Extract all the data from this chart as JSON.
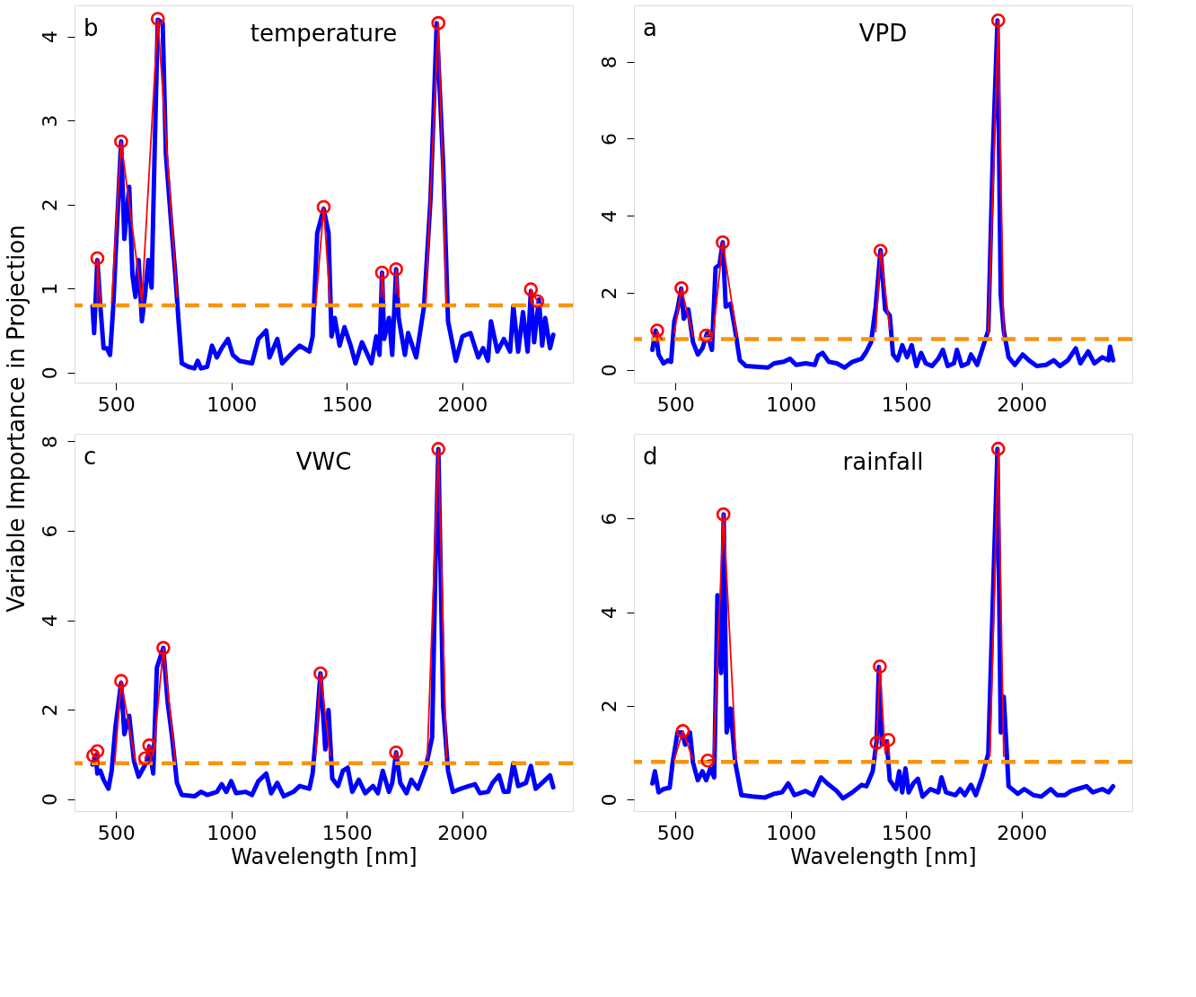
{
  "chart_data": [
    {
      "type": "line",
      "title": "temperature",
      "annotations": [
        "b"
      ],
      "ylabel": "Variable Importance in Projection",
      "xlim": [
        320,
        2480
      ],
      "ylim": [
        -0.12,
        4.37
      ],
      "xticks": [
        500,
        1000,
        1500,
        2000
      ],
      "yticks": [
        0,
        1,
        2,
        3,
        4
      ],
      "series": [
        {
          "color": "#0000ff",
          "x": [
            398,
            405,
            419,
            432,
            446,
            460,
            474,
            488,
            502,
            522,
            536,
            557,
            571,
            584,
            598,
            612,
            626,
            640,
            654,
            667,
            681,
            702,
            716,
            736,
            757,
            771,
            785,
            813,
            840,
            854,
            868,
            895,
            916,
            937,
            958,
            985,
            1006,
            1034,
            1089,
            1117,
            1151,
            1165,
            1199,
            1220,
            1269,
            1296,
            1338,
            1352,
            1372,
            1400,
            1421,
            1434,
            1448,
            1469,
            1490,
            1517,
            1538,
            1566,
            1607,
            1628,
            1642,
            1653,
            1662,
            1683,
            1697,
            1714,
            1725,
            1752,
            1766,
            1801,
            1835,
            1863,
            1890,
            1918,
            1939,
            1973,
            2001,
            2036,
            2070,
            2091,
            2112,
            2125,
            2153,
            2181,
            2208,
            2222,
            2243,
            2264,
            2284,
            2298,
            2312,
            2333,
            2347,
            2360,
            2381,
            2395
          ],
          "values": [
            0.79,
            0.47,
            1.34,
            0.79,
            0.29,
            0.29,
            0.21,
            0.79,
            1.63,
            2.75,
            1.59,
            2.21,
            1.16,
            0.9,
            1.34,
            0.61,
            0.94,
            1.34,
            1.01,
            2.6,
            4.2,
            4.16,
            2.6,
            1.88,
            1.16,
            0.61,
            0.11,
            0.07,
            0.05,
            0.14,
            0.05,
            0.07,
            0.32,
            0.18,
            0.29,
            0.4,
            0.21,
            0.14,
            0.11,
            0.4,
            0.5,
            0.18,
            0.4,
            0.11,
            0.25,
            0.32,
            0.25,
            0.43,
            1.66,
            1.95,
            1.66,
            0.43,
            0.65,
            0.32,
            0.54,
            0.32,
            0.11,
            0.36,
            0.11,
            0.43,
            0.21,
            1.19,
            0.4,
            0.65,
            0.21,
            1.23,
            0.65,
            0.21,
            0.47,
            0.18,
            0.79,
            2.06,
            4.16,
            2.46,
            0.61,
            0.14,
            0.43,
            0.47,
            0.18,
            0.29,
            0.14,
            0.61,
            0.25,
            0.4,
            0.25,
            0.79,
            0.25,
            0.72,
            0.25,
            0.97,
            0.36,
            0.87,
            0.32,
            0.65,
            0.29,
            0.45
          ]
        },
        {
          "color": "#ff0000",
          "x": [
            419,
            419,
            432,
            null,
            481,
            522,
            612,
            681,
            764,
            null,
            1365,
            1400,
            1428,
            null,
            1649,
            1653,
            1662,
            null,
            1711,
            1714,
            1725,
            null,
            1842,
            1897,
            1932,
            null,
            2298,
            2298,
            2326
          ],
          "values": [
            0.85,
            1.36,
            0.83,
            null,
            0.83,
            2.75,
            0.85,
            4.21,
            0.9,
            null,
            0.79,
            1.97,
            0.83,
            null,
            0.9,
            1.19,
            0.87,
            null,
            0.94,
            1.23,
            0.9,
            null,
            0.83,
            4.16,
            0.83,
            null,
            0.83,
            0.99,
            0.85
          ]
        },
        {
          "type": "scatter",
          "color": "#ff0000",
          "marker": "circle",
          "x": [
            419,
            522,
            681,
            1400,
            1653,
            1714,
            1897,
            2298,
            2326
          ],
          "values": [
            1.36,
            2.75,
            4.21,
            1.97,
            1.19,
            1.23,
            4.16,
            0.99,
            0.85
          ]
        }
      ],
      "ref_lines": [
        {
          "axis": "y",
          "value": 0.8,
          "color": "#f7940f",
          "line_style": "dashed"
        }
      ]
    },
    {
      "type": "line",
      "title": "VPD",
      "annotations": [
        "a"
      ],
      "xlim": [
        320,
        2480
      ],
      "ylim": [
        -0.33,
        9.46
      ],
      "xticks": [
        500,
        1000,
        1500,
        2000
      ],
      "yticks": [
        0,
        2,
        4,
        6,
        8
      ],
      "series": [
        {
          "color": "#0000ff",
          "x": [
            400,
            414,
            427,
            448,
            468,
            481,
            495,
            509,
            525,
            536,
            556,
            576,
            597,
            617,
            637,
            658,
            674,
            691,
            705,
            718,
            739,
            759,
            779,
            806,
            861,
            901,
            928,
            969,
            996,
            1023,
            1064,
            1104,
            1118,
            1138,
            1165,
            1199,
            1233,
            1267,
            1307,
            1328,
            1348,
            1368,
            1389,
            1409,
            1429,
            1443,
            1463,
            1483,
            1504,
            1524,
            1544,
            1565,
            1585,
            1612,
            1639,
            1659,
            1680,
            1707,
            1720,
            1741,
            1768,
            1781,
            1808,
            1835,
            1856,
            1876,
            1896,
            1910,
            1923,
            1944,
            1971,
            2005,
            2032,
            2066,
            2106,
            2140,
            2167,
            2201,
            2235,
            2255,
            2289,
            2316,
            2350,
            2377,
            2384,
            2397
          ],
          "values": [
            0.52,
            1.02,
            0.4,
            0.17,
            0.25,
            0.21,
            1.26,
            1.57,
            2.11,
            1.33,
            1.57,
            0.72,
            0.4,
            0.56,
            0.95,
            0.52,
            2.65,
            2.73,
            3.31,
            1.64,
            1.72,
            1.02,
            0.25,
            0.1,
            0.08,
            0.06,
            0.17,
            0.21,
            0.29,
            0.13,
            0.17,
            0.13,
            0.37,
            0.44,
            0.21,
            0.17,
            0.06,
            0.21,
            0.29,
            0.48,
            0.72,
            1.64,
            3.11,
            1.57,
            1.41,
            0.4,
            0.25,
            0.64,
            0.33,
            0.64,
            0.1,
            0.44,
            0.17,
            0.1,
            0.29,
            0.52,
            0.1,
            0.17,
            0.52,
            0.1,
            0.17,
            0.4,
            0.13,
            0.64,
            1.02,
            5.67,
            9.07,
            1.95,
            1.02,
            0.33,
            0.13,
            0.4,
            0.25,
            0.1,
            0.13,
            0.25,
            0.1,
            0.25,
            0.56,
            0.17,
            0.48,
            0.17,
            0.33,
            0.25,
            0.6,
            0.25
          ]
        },
        {
          "color": "#ff0000",
          "x": [
            421,
            421,
            441,
            null,
            495,
            526,
            576,
            null,
            633,
            664,
            705,
            766,
            null,
            1368,
            1389,
            1429,
            null,
            1856,
            1899,
            1923
          ],
          "values": [
            0.71,
            1.02,
            0.79,
            null,
            0.95,
            2.12,
            0.87,
            null,
            0.89,
            0.95,
            3.31,
            0.87,
            null,
            0.99,
            3.09,
            1.06,
            null,
            0.95,
            9.07,
            0.87
          ]
        },
        {
          "type": "scatter",
          "color": "#ff0000",
          "marker": "circle",
          "x": [
            421,
            526,
            633,
            705,
            1389,
            1899
          ],
          "values": [
            1.02,
            2.12,
            0.89,
            3.31,
            3.09,
            9.07
          ]
        }
      ],
      "ref_lines": [
        {
          "axis": "y",
          "value": 0.8,
          "color": "#f7940f",
          "line_style": "dashed"
        }
      ]
    },
    {
      "type": "line",
      "title": "VWC",
      "annotations": [
        "c"
      ],
      "xlabel": "Wavelength [nm]",
      "xlim": [
        320,
        2480
      ],
      "ylim": [
        -0.27,
        8.17
      ],
      "xticks": [
        500,
        1000,
        1500,
        2000
      ],
      "yticks": [
        0,
        2,
        4,
        6,
        8
      ],
      "series": [
        {
          "color": "#0000ff",
          "x": [
            398,
            412,
            419,
            432,
            446,
            467,
            481,
            497,
            522,
            536,
            557,
            578,
            598,
            619,
            633,
            644,
            661,
            677,
            705,
            723,
            743,
            764,
            785,
            840,
            868,
            895,
            937,
            958,
            978,
            999,
            1020,
            1061,
            1089,
            1117,
            1151,
            1172,
            1199,
            1227,
            1269,
            1296,
            1338,
            1352,
            1368,
            1386,
            1407,
            1421,
            1437,
            1462,
            1483,
            1504,
            1524,
            1552,
            1580,
            1614,
            1635,
            1656,
            1683,
            1697,
            1714,
            1732,
            1759,
            1780,
            1808,
            1842,
            1870,
            1884,
            1897,
            1918,
            1939,
            1960,
            1994,
            2029,
            2056,
            2077,
            2112,
            2132,
            2160,
            2181,
            2201,
            2222,
            2243,
            2277,
            2298,
            2319,
            2347,
            2381,
            2395
          ],
          "values": [
            0.77,
            0.97,
            0.57,
            0.63,
            0.43,
            0.23,
            0.63,
            1.59,
            2.6,
            1.45,
            1.86,
            0.84,
            0.5,
            0.7,
            0.84,
            1.18,
            0.57,
            2.94,
            3.38,
            2.2,
            1.38,
            0.36,
            0.09,
            0.06,
            0.16,
            0.09,
            0.16,
            0.33,
            0.16,
            0.4,
            0.13,
            0.16,
            0.09,
            0.4,
            0.57,
            0.13,
            0.36,
            0.06,
            0.16,
            0.29,
            0.23,
            0.57,
            1.52,
            2.81,
            1.11,
            1.99,
            0.46,
            0.29,
            0.63,
            0.7,
            0.16,
            0.43,
            0.13,
            0.29,
            0.13,
            0.63,
            0.16,
            0.36,
            1.04,
            0.36,
            0.13,
            0.43,
            0.23,
            0.7,
            1.38,
            5.12,
            7.83,
            2.06,
            0.63,
            0.16,
            0.23,
            0.29,
            0.33,
            0.13,
            0.16,
            0.36,
            0.53,
            0.16,
            0.16,
            0.8,
            0.29,
            0.36,
            0.74,
            0.23,
            0.36,
            0.53,
            0.26
          ]
        },
        {
          "color": "#ff0000",
          "x": [
            398,
            401,
            419,
            426,
            null,
            495,
            522,
            584,
            null,
            626,
            644,
            661,
            705,
            757,
            null,
            1365,
            1386,
            1428,
            null,
            1704,
            1714,
            1722,
            null,
            1849,
            1897,
            1932
          ],
          "values": [
            0.91,
            0.97,
            1.07,
            0.77,
            null,
            0.84,
            2.64,
            0.84,
            null,
            0.91,
            1.2,
            0.97,
            3.38,
            0.84,
            null,
            0.97,
            2.81,
            0.97,
            null,
            0.91,
            1.04,
            0.91,
            null,
            0.91,
            7.83,
            0.91
          ]
        },
        {
          "type": "scatter",
          "color": "#ff0000",
          "marker": "circle",
          "x": [
            401,
            419,
            522,
            626,
            644,
            705,
            1386,
            1714,
            1897
          ],
          "values": [
            0.97,
            1.07,
            2.64,
            0.91,
            1.2,
            3.38,
            2.81,
            1.04,
            7.83
          ]
        }
      ],
      "ref_lines": [
        {
          "axis": "y",
          "value": 0.8,
          "color": "#f7940f",
          "line_style": "dashed"
        }
      ]
    },
    {
      "type": "line",
      "title": "rainfall",
      "annotations": [
        "d"
      ],
      "xlabel": "Wavelength [nm]",
      "xlim": [
        320,
        2480
      ],
      "ylim": [
        -0.25,
        7.81
      ],
      "xticks": [
        500,
        1000,
        1500,
        2000
      ],
      "yticks": [
        0,
        2,
        4,
        6
      ],
      "series": [
        {
          "color": "#0000ff",
          "x": [
            400,
            411,
            427,
            448,
            475,
            488,
            509,
            529,
            542,
            563,
            576,
            597,
            617,
            633,
            651,
            668,
            682,
            698,
            709,
            722,
            739,
            759,
            786,
            834,
            888,
            928,
            962,
            989,
            1016,
            1064,
            1097,
            1131,
            1158,
            1199,
            1226,
            1267,
            1307,
            1328,
            1355,
            1372,
            1382,
            1395,
            1416,
            1429,
            1456,
            1470,
            1483,
            1497,
            1511,
            1531,
            1551,
            1571,
            1605,
            1639,
            1653,
            1673,
            1714,
            1734,
            1754,
            1781,
            1802,
            1829,
            1856,
            1876,
            1896,
            1910,
            1923,
            1944,
            1984,
            2012,
            2052,
            2086,
            2127,
            2154,
            2188,
            2215,
            2242,
            2282,
            2309,
            2350,
            2377,
            2397
          ],
          "values": [
            0.34,
            0.6,
            0.15,
            0.22,
            0.25,
            0.79,
            1.43,
            1.43,
            1.17,
            1.43,
            0.79,
            0.41,
            0.6,
            0.41,
            0.66,
            0.47,
            4.36,
            2.7,
            6.09,
            1.43,
            1.94,
            0.79,
            0.09,
            0.06,
            0.04,
            0.12,
            0.15,
            0.34,
            0.09,
            0.18,
            0.09,
            0.47,
            0.34,
            0.18,
            0.02,
            0.15,
            0.31,
            0.28,
            0.6,
            1.24,
            2.83,
            1.17,
            1.24,
            0.41,
            0.22,
            0.6,
            0.15,
            0.66,
            0.15,
            0.34,
            0.44,
            0.06,
            0.22,
            0.15,
            0.47,
            0.15,
            0.09,
            0.22,
            0.09,
            0.31,
            0.09,
            0.47,
            0.98,
            4.3,
            7.49,
            1.43,
            2.19,
            0.28,
            0.12,
            0.22,
            0.09,
            0.06,
            0.22,
            0.09,
            0.09,
            0.18,
            0.22,
            0.28,
            0.15,
            0.22,
            0.15,
            0.28
          ]
        },
        {
          "color": "#ff0000",
          "x": [
            495,
            532,
            576,
            null,
            640,
            664,
            708,
            763,
            null,
            1368,
            1372,
            1386,
            1409,
            1423,
            1427,
            null,
            1863,
            1899,
            1923
          ],
          "values": [
            0.85,
            1.46,
            0.85,
            null,
            0.83,
            0.85,
            6.09,
            0.85,
            null,
            0.92,
            1.21,
            2.84,
            0.98,
            1.27,
            0.95,
            null,
            0.92,
            7.49,
            0.92
          ]
        },
        {
          "type": "scatter",
          "color": "#ff0000",
          "marker": "circle",
          "x": [
            532,
            640,
            708,
            1372,
            1386,
            1423,
            1899
          ],
          "values": [
            1.46,
            0.83,
            6.09,
            1.21,
            2.84,
            1.27,
            7.49
          ]
        }
      ],
      "ref_lines": [
        {
          "axis": "y",
          "value": 0.8,
          "color": "#f7940f",
          "line_style": "dashed"
        }
      ]
    }
  ]
}
